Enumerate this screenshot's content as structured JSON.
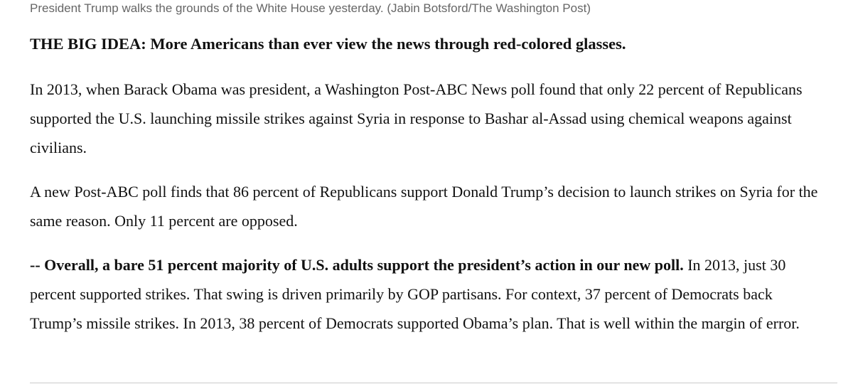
{
  "caption": "President Trump walks the grounds of the White House yesterday. (Jabin Botsford/The Washington Post)",
  "heading": "THE BIG IDEA: More Americans than ever view the news through red-colored glasses.",
  "paragraphs": [
    {
      "text": "In 2013, when Barack Obama was president, a Washington Post-ABC News poll found that only 22 percent of Republicans supported the U.S. launching missile strikes against Syria in response to Bashar al-Assad using chemical weapons against civilians."
    },
    {
      "text": "A new Post-ABC poll finds that 86 percent of Republicans support Donald Trump’s decision to launch strikes on Syria for the same reason. Only 11 percent are opposed."
    },
    {
      "lead": "-- Overall, a bare 51 percent majority of U.S. adults support the president’s action in our new poll.",
      "text": " In 2013, just 30 percent supported strikes. That swing is driven primarily by GOP partisans. For context, 37 percent of Democrats back Trump’s missile strikes. In 2013, 38 percent of Democrats supported Obama’s plan. That is well within the margin of error."
    }
  ]
}
